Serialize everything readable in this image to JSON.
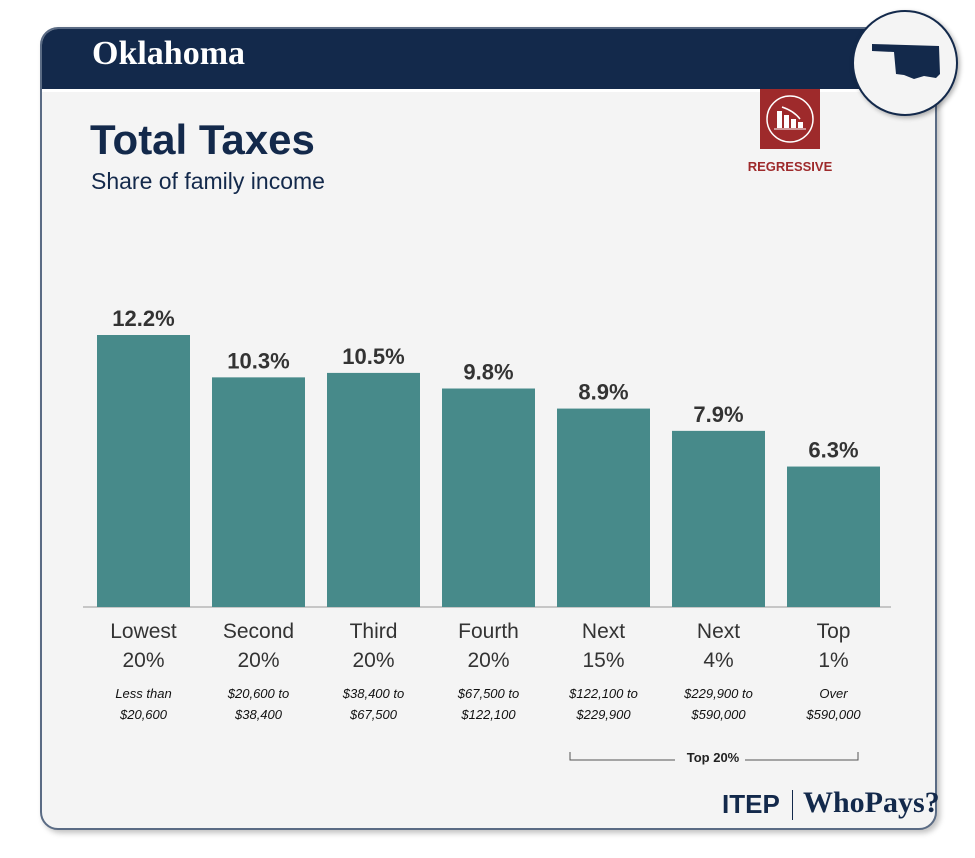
{
  "header": {
    "state": "Oklahoma"
  },
  "title": "Total Taxes",
  "subtitle": "Share of family income",
  "badge": {
    "label": "REGRESSIVE",
    "color": "#9e2a2b",
    "icon": "regressive-bar-chart-icon"
  },
  "footer": {
    "itep": "ITEP",
    "whopays": "WhoPays?"
  },
  "chart_data": {
    "type": "bar",
    "categories": [
      [
        "Lowest",
        "20%"
      ],
      [
        "Second",
        "20%"
      ],
      [
        "Third",
        "20%"
      ],
      [
        "Fourth",
        "20%"
      ],
      [
        "Next",
        "15%"
      ],
      [
        "Next",
        "4%"
      ],
      [
        "Top",
        "1%"
      ]
    ],
    "ranges": [
      [
        "Less than",
        "$20,600"
      ],
      [
        "$20,600 to",
        "$38,400"
      ],
      [
        "$38,400 to",
        "$67,500"
      ],
      [
        "$67,500 to",
        "$122,100"
      ],
      [
        "$122,100 to",
        "$229,900"
      ],
      [
        "$229,900 to",
        "$590,000"
      ],
      [
        "Over",
        "$590,000"
      ]
    ],
    "values": [
      12.2,
      10.3,
      10.5,
      9.8,
      8.9,
      7.9,
      6.3
    ],
    "labels": [
      "12.2%",
      "10.3%",
      "10.5%",
      "9.8%",
      "8.9%",
      "7.9%",
      "6.3%"
    ],
    "bar_color": "#478a8a",
    "bracket_label": "Top 20%",
    "ylim": [
      0,
      12.2
    ]
  }
}
